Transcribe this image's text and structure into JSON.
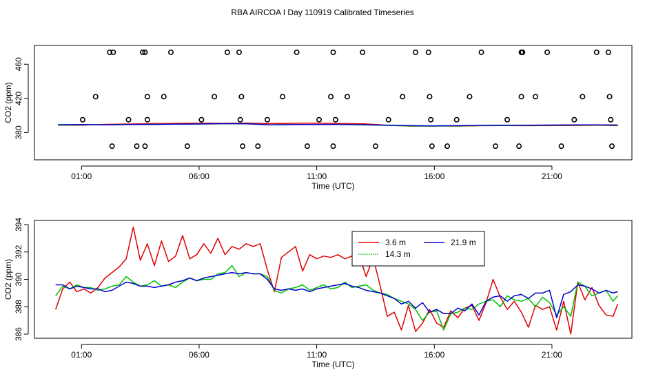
{
  "figure_title": "RBA AIRCOA I  Day 110919  Calibrated Timeseries",
  "colors": {
    "s1": "#e00000",
    "s2": "#00c000",
    "s3": "#0000d0",
    "axis": "#000000"
  },
  "chart_data": [
    {
      "type": "scatter",
      "title": "RBA AIRCOA I  Day 110919  Calibrated Timeseries",
      "xlabel": "Time (UTC)",
      "ylabel": "CO2 (ppm)",
      "xlim": [
        -1.0,
        24.4
      ],
      "ylim": [
        348,
        482
      ],
      "xticks": [
        1,
        6,
        11,
        16,
        21
      ],
      "xtick_labels": [
        "01:00",
        "06:00",
        "11:00",
        "16:00",
        "21:00"
      ],
      "yticks": [
        380,
        420,
        460
      ],
      "ytick_labels": [
        "380",
        "420",
        "460"
      ],
      "calibration_points": {
        "name": "calibration",
        "x": [
          1.05,
          1.6,
          2.2,
          2.3,
          3.0,
          2.35,
          3.35,
          3.8,
          3.8,
          3.7,
          3.7,
          3.6,
          4.8,
          4.5,
          5.5,
          6.1,
          6.65,
          7.2,
          7.7,
          7.8,
          7.75,
          7.85,
          8.5,
          8.9,
          9.55,
          10.15,
          10.6,
          11.1,
          11.6,
          11.7,
          11.7,
          11.8,
          12.3,
          12.95,
          13.5,
          14.05,
          14.65,
          15.2,
          15.75,
          15.8,
          15.85,
          15.9,
          16.55,
          16.95,
          17.5,
          18.0,
          18.6,
          19.1,
          19.6,
          19.7,
          19.7,
          19.75,
          20.3,
          20.8,
          21.4,
          21.95,
          22.3,
          22.9,
          23.4,
          23.45,
          23.5,
          23.55
        ],
        "y": [
          395,
          422,
          474,
          364,
          395,
          474,
          364,
          395,
          422,
          474,
          364,
          474,
          474,
          422,
          364,
          395,
          422,
          474,
          474,
          422,
          395,
          364,
          364,
          395,
          422,
          474,
          364,
          395,
          422,
          474,
          364,
          395,
          422,
          474,
          364,
          395,
          422,
          474,
          474,
          422,
          395,
          364,
          364,
          395,
          422,
          474,
          364,
          395,
          364,
          474,
          422,
          474,
          422,
          474,
          364,
          395,
          422,
          474,
          474,
          422,
          395,
          364
        ]
      },
      "series": [
        {
          "name": "3.6 m",
          "x": [
            0,
            1,
            2,
            3,
            4,
            5,
            6,
            7,
            8,
            9,
            10,
            11,
            12,
            13,
            14,
            15,
            16,
            17,
            18,
            19,
            20,
            21,
            22,
            23,
            23.8
          ],
          "values": [
            388.5,
            388.7,
            389.5,
            390.0,
            390.5,
            390.7,
            391.0,
            390.8,
            391.0,
            390.5,
            390.8,
            391.0,
            390.5,
            390.2,
            388.5,
            387.5,
            387.8,
            387.5,
            388.0,
            388.2,
            388.0,
            388.1,
            388.3,
            388.5,
            388.0
          ]
        },
        {
          "name": "14.3 m",
          "x": [
            0,
            1,
            2,
            3,
            4,
            5,
            6,
            7,
            8,
            9,
            10,
            11,
            12,
            13,
            14,
            15,
            16,
            17,
            18,
            19,
            20,
            21,
            22,
            23,
            23.8
          ],
          "values": [
            388.5,
            389.2,
            389.0,
            389.3,
            389.6,
            389.8,
            390.0,
            390.3,
            390.2,
            389.0,
            389.4,
            389.4,
            389.5,
            389.0,
            388.4,
            387.6,
            387.5,
            387.8,
            388.3,
            388.3,
            388.4,
            388.6,
            388.8,
            388.8,
            388.5
          ]
        },
        {
          "name": "21.9 m",
          "x": [
            0,
            1,
            2,
            3,
            4,
            5,
            6,
            7,
            8,
            9,
            10,
            11,
            12,
            13,
            14,
            15,
            16,
            17,
            18,
            19,
            20,
            21,
            22,
            23,
            23.8
          ],
          "values": [
            389.2,
            389.4,
            389.0,
            389.3,
            389.5,
            389.8,
            390.0,
            390.4,
            390.3,
            389.0,
            389.3,
            389.3,
            389.5,
            389.1,
            388.6,
            388.0,
            387.8,
            388.0,
            388.4,
            388.6,
            388.6,
            388.8,
            389.0,
            389.0,
            388.8
          ]
        }
      ]
    },
    {
      "type": "line",
      "xlabel": "Time (UTC)",
      "ylabel": "CO2 (ppm)",
      "xlim": [
        -1.0,
        24.4
      ],
      "ylim": [
        385.7,
        394.3
      ],
      "xticks": [
        1,
        6,
        11,
        16,
        21
      ],
      "xtick_labels": [
        "01:00",
        "06:00",
        "11:00",
        "16:00",
        "21:00"
      ],
      "yticks": [
        386,
        388,
        390,
        392,
        394
      ],
      "ytick_labels": [
        "386",
        "388",
        "390",
        "392",
        "394"
      ],
      "legend": {
        "position": "top-center",
        "entries": [
          "3.6 m",
          "21.9 m",
          "14.3 m"
        ]
      },
      "series": [
        {
          "name": "3.6 m",
          "x": [
            -0.1,
            0.2,
            0.5,
            0.8,
            1.1,
            1.4,
            1.7,
            2.0,
            2.3,
            2.6,
            2.9,
            3.2,
            3.5,
            3.8,
            4.1,
            4.4,
            4.7,
            5.0,
            5.3,
            5.6,
            5.9,
            6.2,
            6.5,
            6.8,
            7.1,
            7.4,
            7.7,
            8.0,
            8.3,
            8.6,
            8.9,
            9.2,
            9.5,
            9.8,
            10.1,
            10.4,
            10.7,
            11.0,
            11.3,
            11.6,
            11.9,
            12.2,
            12.5,
            12.8,
            13.1,
            13.4,
            13.7,
            14.0,
            14.3,
            14.6,
            14.9,
            15.2,
            15.5,
            15.8,
            16.1,
            16.4,
            16.7,
            17.0,
            17.3,
            17.6,
            17.9,
            18.2,
            18.5,
            18.8,
            19.1,
            19.4,
            19.7,
            20.0,
            20.3,
            20.6,
            20.9,
            21.2,
            21.5,
            21.8,
            22.1,
            22.4,
            22.7,
            23.0,
            23.3,
            23.6,
            23.8
          ],
          "values": [
            387.8,
            389.3,
            389.8,
            389.1,
            389.3,
            389.0,
            389.4,
            390.1,
            390.5,
            390.9,
            391.5,
            393.8,
            391.4,
            392.6,
            391.0,
            392.8,
            391.3,
            391.7,
            393.2,
            391.5,
            391.8,
            392.6,
            391.9,
            393.0,
            391.8,
            392.4,
            392.2,
            392.6,
            392.4,
            392.6,
            390.7,
            389.1,
            391.6,
            392.0,
            392.4,
            390.6,
            391.8,
            391.5,
            391.7,
            391.6,
            391.8,
            391.5,
            391.7,
            391.8,
            390.2,
            391.6,
            389.5,
            387.3,
            387.6,
            386.3,
            388.1,
            386.2,
            386.8,
            387.8,
            386.8,
            386.5,
            387.7,
            387.2,
            387.9,
            388.1,
            387.0,
            388.3,
            390.0,
            388.7,
            387.8,
            388.4,
            387.6,
            386.5,
            388.1,
            387.8,
            388.0,
            386.3,
            388.4,
            386.0,
            389.8,
            388.5,
            389.4,
            388.1,
            387.4,
            387.3,
            388.2
          ]
        },
        {
          "name": "14.3 m",
          "x": [
            -0.1,
            0.2,
            0.5,
            0.8,
            1.1,
            1.4,
            1.7,
            2.0,
            2.3,
            2.6,
            2.9,
            3.2,
            3.5,
            3.8,
            4.1,
            4.4,
            4.7,
            5.0,
            5.3,
            5.6,
            5.9,
            6.2,
            6.5,
            6.8,
            7.1,
            7.4,
            7.7,
            8.0,
            8.3,
            8.6,
            8.9,
            9.2,
            9.5,
            9.8,
            10.1,
            10.4,
            10.7,
            11.0,
            11.3,
            11.6,
            11.9,
            12.2,
            12.5,
            12.8,
            13.1,
            13.4,
            13.7,
            14.0,
            14.3,
            14.6,
            14.9,
            15.2,
            15.5,
            15.8,
            16.1,
            16.4,
            16.7,
            17.0,
            17.3,
            17.6,
            17.9,
            18.2,
            18.5,
            18.8,
            19.1,
            19.4,
            19.7,
            20.0,
            20.3,
            20.6,
            20.9,
            21.2,
            21.5,
            21.8,
            22.1,
            22.4,
            22.7,
            23.0,
            23.3,
            23.6,
            23.8
          ],
          "values": [
            388.8,
            389.5,
            389.3,
            389.6,
            389.4,
            389.4,
            389.2,
            389.3,
            389.5,
            389.6,
            390.2,
            389.8,
            389.5,
            389.6,
            389.9,
            389.5,
            389.6,
            389.4,
            389.8,
            390.1,
            389.9,
            390.0,
            390.0,
            390.4,
            390.5,
            391.0,
            390.2,
            390.5,
            390.4,
            390.4,
            390.2,
            389.2,
            389.0,
            389.3,
            389.4,
            389.6,
            389.2,
            389.4,
            389.6,
            389.3,
            389.4,
            389.8,
            389.4,
            389.5,
            389.6,
            389.2,
            389.0,
            388.9,
            388.6,
            388.4,
            388.2,
            387.8,
            387.0,
            387.6,
            387.7,
            386.3,
            387.5,
            387.6,
            387.9,
            387.8,
            388.2,
            388.4,
            388.5,
            388.0,
            388.8,
            388.5,
            388.4,
            388.6,
            388.0,
            388.7,
            388.3,
            387.4,
            388.0,
            387.3,
            389.8,
            389.5,
            388.8,
            389.0,
            389.2,
            388.4,
            388.8
          ]
        },
        {
          "name": "21.9 m",
          "x": [
            -0.1,
            0.2,
            0.5,
            0.8,
            1.1,
            1.4,
            1.7,
            2.0,
            2.3,
            2.6,
            2.9,
            3.2,
            3.5,
            3.8,
            4.1,
            4.4,
            4.7,
            5.0,
            5.3,
            5.6,
            5.9,
            6.2,
            6.5,
            6.8,
            7.1,
            7.4,
            7.7,
            8.0,
            8.3,
            8.6,
            8.9,
            9.2,
            9.5,
            9.8,
            10.1,
            10.4,
            10.7,
            11.0,
            11.3,
            11.6,
            11.9,
            12.2,
            12.5,
            12.8,
            13.1,
            13.4,
            13.7,
            14.0,
            14.3,
            14.6,
            14.9,
            15.2,
            15.5,
            15.8,
            16.1,
            16.4,
            16.7,
            17.0,
            17.3,
            17.6,
            17.9,
            18.2,
            18.5,
            18.8,
            19.1,
            19.4,
            19.7,
            20.0,
            20.3,
            20.6,
            20.9,
            21.2,
            21.5,
            21.8,
            22.1,
            22.4,
            22.7,
            23.0,
            23.3,
            23.6,
            23.8
          ],
          "values": [
            389.6,
            389.6,
            389.3,
            389.5,
            389.4,
            389.3,
            389.3,
            389.1,
            389.2,
            389.5,
            389.8,
            389.7,
            389.5,
            389.5,
            389.4,
            389.5,
            389.6,
            389.8,
            389.9,
            390.1,
            389.9,
            390.1,
            390.2,
            390.3,
            390.4,
            390.5,
            390.4,
            390.5,
            390.4,
            390.4,
            390.0,
            389.3,
            389.2,
            389.3,
            389.2,
            389.3,
            389.1,
            389.3,
            389.4,
            389.5,
            389.6,
            389.7,
            389.5,
            389.4,
            389.2,
            389.1,
            389.0,
            388.8,
            388.6,
            388.2,
            388.4,
            387.9,
            388.3,
            387.6,
            387.8,
            387.5,
            387.5,
            387.9,
            387.7,
            388.2,
            387.4,
            388.4,
            388.7,
            388.8,
            388.4,
            388.8,
            388.9,
            388.6,
            389.0,
            389.0,
            389.2,
            387.2,
            388.9,
            389.1,
            389.6,
            389.5,
            389.3,
            389.0,
            389.2,
            389.0,
            389.1
          ]
        }
      ]
    }
  ]
}
